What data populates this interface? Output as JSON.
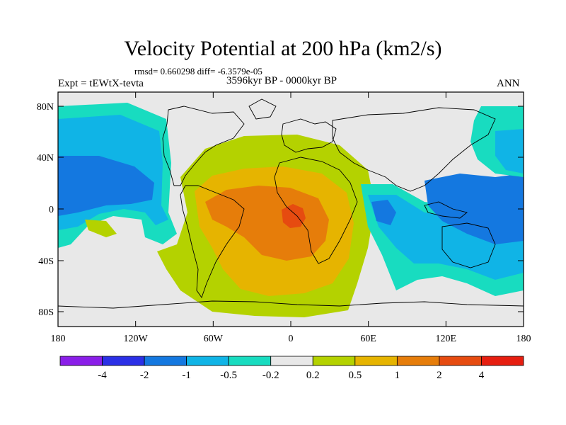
{
  "title": "Velocity Potential at 200 hPa (km2/s)",
  "stats": "rmsd= 0.660298 diff= -6.3579e-05",
  "expt": "Expt = tEWtX-tevta",
  "period": "3596kyr BP - 0000kyr BP",
  "season": "ANN",
  "lat_labels": [
    "80N",
    "40N",
    "0",
    "40S",
    "80S"
  ],
  "lon_labels": [
    "180",
    "120W",
    "60W",
    "0",
    "60E",
    "120E",
    "180"
  ],
  "colorbar": {
    "labels": [
      "-4",
      "-2",
      "-1",
      "-0.5",
      "-0.2",
      "0.2",
      "0.5",
      "1",
      "2",
      "4"
    ],
    "colors": [
      "#8a1ee8",
      "#2b30e6",
      "#1478e0",
      "#10b4e6",
      "#18dcc0",
      "#e8e8e8",
      "#b4d200",
      "#e6b400",
      "#e67d0a",
      "#e64b10",
      "#e61e10"
    ]
  }
}
